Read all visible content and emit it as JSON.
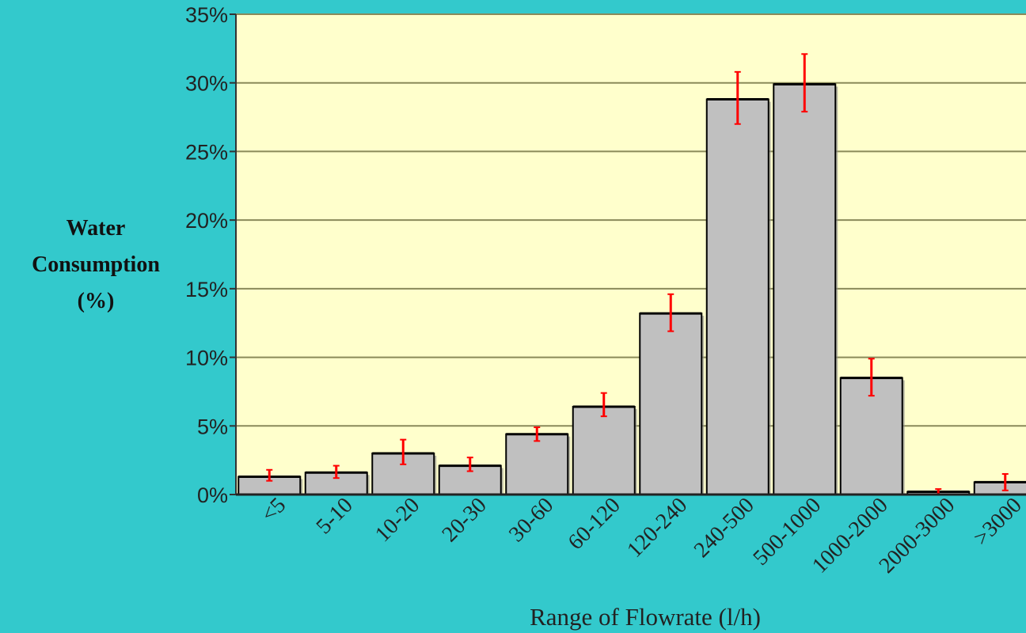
{
  "colors": {
    "background": "#33c9cc",
    "plot_area": "#ffffcc",
    "bar_fill": "#c0c0c0",
    "bar_edge": "#000000",
    "error_bar": "#ff0000",
    "gridline": "#8a8a5a"
  },
  "chart_data": {
    "type": "bar",
    "title": "",
    "xlabel": "Range of Flowrate (l/h)",
    "ylabel": [
      "Water",
      "Consumption",
      "(%)"
    ],
    "categories": [
      "<5",
      "5-10",
      "10-20",
      "20-30",
      "30-60",
      "60-120",
      "120-240",
      "240-500",
      "500-1000",
      "1000-2000",
      "2000-3000",
      ">3000"
    ],
    "values": [
      1.3,
      1.6,
      3.0,
      2.1,
      4.4,
      6.4,
      13.2,
      28.8,
      29.9,
      8.5,
      0.2,
      0.9
    ],
    "error_low": [
      1.0,
      1.2,
      2.2,
      1.7,
      3.9,
      5.7,
      11.9,
      27.0,
      27.9,
      7.2,
      0.0,
      0.3
    ],
    "error_high": [
      1.8,
      2.1,
      4.0,
      2.7,
      4.9,
      7.4,
      14.6,
      30.8,
      32.1,
      9.9,
      0.4,
      1.5
    ],
    "ylim": [
      0,
      35
    ],
    "yticks": [
      0,
      5,
      10,
      15,
      20,
      25,
      30,
      35
    ],
    "ytick_labels": [
      "0%",
      "5%",
      "10%",
      "15%",
      "20%",
      "25%",
      "30%",
      "35%"
    ],
    "grid": true,
    "legend": "none"
  }
}
